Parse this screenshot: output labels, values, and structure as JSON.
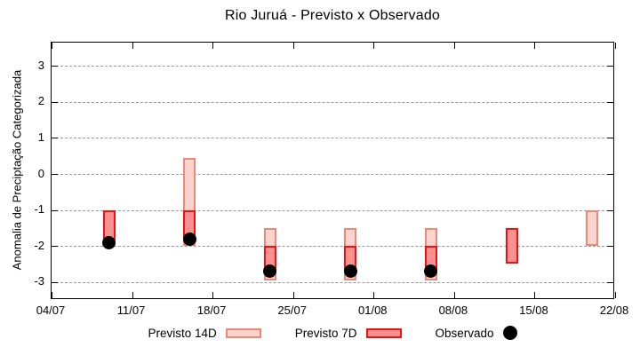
{
  "chart_data": {
    "type": "bar",
    "subtype": "range-boxes-with-points",
    "title": "Rio Juruá - Previsto x Observado",
    "xlabel": "",
    "ylabel": "Anomalia de Preciptação Categorizada",
    "ylim": [
      -3.5,
      3.65
    ],
    "y_ticks": [
      3,
      2,
      1,
      0,
      -1,
      -2,
      -3
    ],
    "x_ticks": [
      "04/07",
      "11/07",
      "18/07",
      "25/07",
      "01/08",
      "08/08",
      "15/08",
      "22/08"
    ],
    "grid": "horizontal-dotted",
    "legend_position": "bottom-center",
    "series_meta": [
      {
        "name": "Previsto 14D",
        "key": "p14",
        "fill": "#fad3cd",
        "border": "#ec8878"
      },
      {
        "name": "Previsto 7D",
        "key": "p7",
        "fill": "#fa9191",
        "border": "#ee1111"
      },
      {
        "name": "Observado",
        "key": "obs",
        "color": "#000000"
      }
    ],
    "points": [
      {
        "date": "09/07",
        "p14": null,
        "p7": [
          -1.0,
          -1.85
        ],
        "obs": -1.9
      },
      {
        "date": "16/07",
        "p14": [
          0.45,
          -2.0
        ],
        "p7": [
          -1.0,
          -1.8
        ],
        "obs": -1.8
      },
      {
        "date": "23/07",
        "p14": [
          -1.5,
          -2.95
        ],
        "p7": [
          -2.0,
          -2.7
        ],
        "obs": -2.7
      },
      {
        "date": "30/07",
        "p14": [
          -1.5,
          -2.95
        ],
        "p7": [
          -2.0,
          -2.7
        ],
        "obs": -2.7
      },
      {
        "date": "06/08",
        "p14": [
          -1.5,
          -2.95
        ],
        "p7": [
          -2.0,
          -2.7
        ],
        "obs": -2.7
      },
      {
        "date": "13/08",
        "p14": null,
        "p7": [
          -1.5,
          -2.5
        ],
        "obs": null
      },
      {
        "date": "20/08",
        "p14": [
          -1.0,
          -2.0
        ],
        "p7": null,
        "obs": null
      }
    ],
    "axis_color": "#000000",
    "gridline_color": "#989898"
  }
}
